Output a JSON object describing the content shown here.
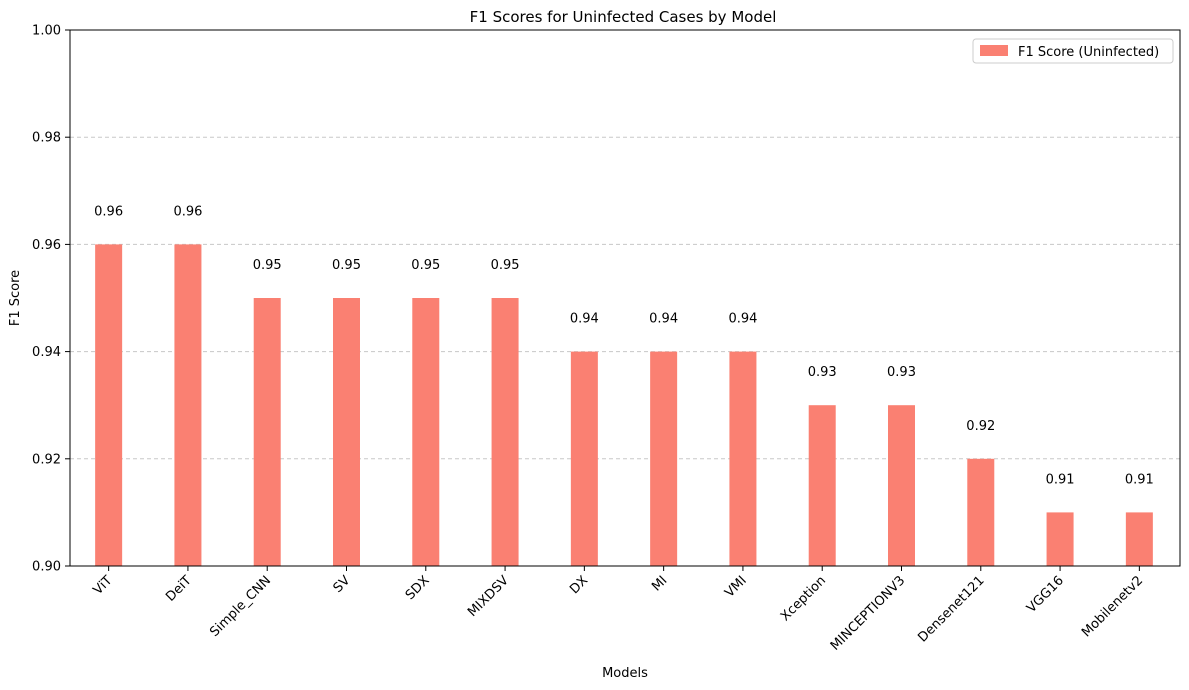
{
  "chart_data": {
    "type": "bar",
    "title": "F1 Scores for Uninfected Cases by Model",
    "xlabel": "Models",
    "ylabel": "F1 Score",
    "ylim": [
      0.9,
      1.0
    ],
    "yticks": [
      "0.90",
      "0.92",
      "0.94",
      "0.96",
      "0.98",
      "1.00"
    ],
    "grid": "y dashed",
    "legend_position": "top-right",
    "categories": [
      "ViT",
      "DeiT",
      "Simple_CNN",
      "SV",
      "SDX",
      "MIXDSV",
      "DX",
      "MI",
      "VMI",
      "Xception",
      "MINCEPTIONV3",
      "Densenet121",
      "VGG16",
      "Mobilenetv2"
    ],
    "series": [
      {
        "name": "F1 Score (Uninfected)",
        "color": "#fa8072",
        "values": [
          0.96,
          0.96,
          0.95,
          0.95,
          0.95,
          0.95,
          0.94,
          0.94,
          0.94,
          0.93,
          0.93,
          0.92,
          0.91,
          0.91
        ],
        "labels": [
          "0.96",
          "0.96",
          "0.95",
          "0.95",
          "0.95",
          "0.95",
          "0.94",
          "0.94",
          "0.94",
          "0.93",
          "0.93",
          "0.92",
          "0.91",
          "0.91"
        ]
      }
    ]
  }
}
